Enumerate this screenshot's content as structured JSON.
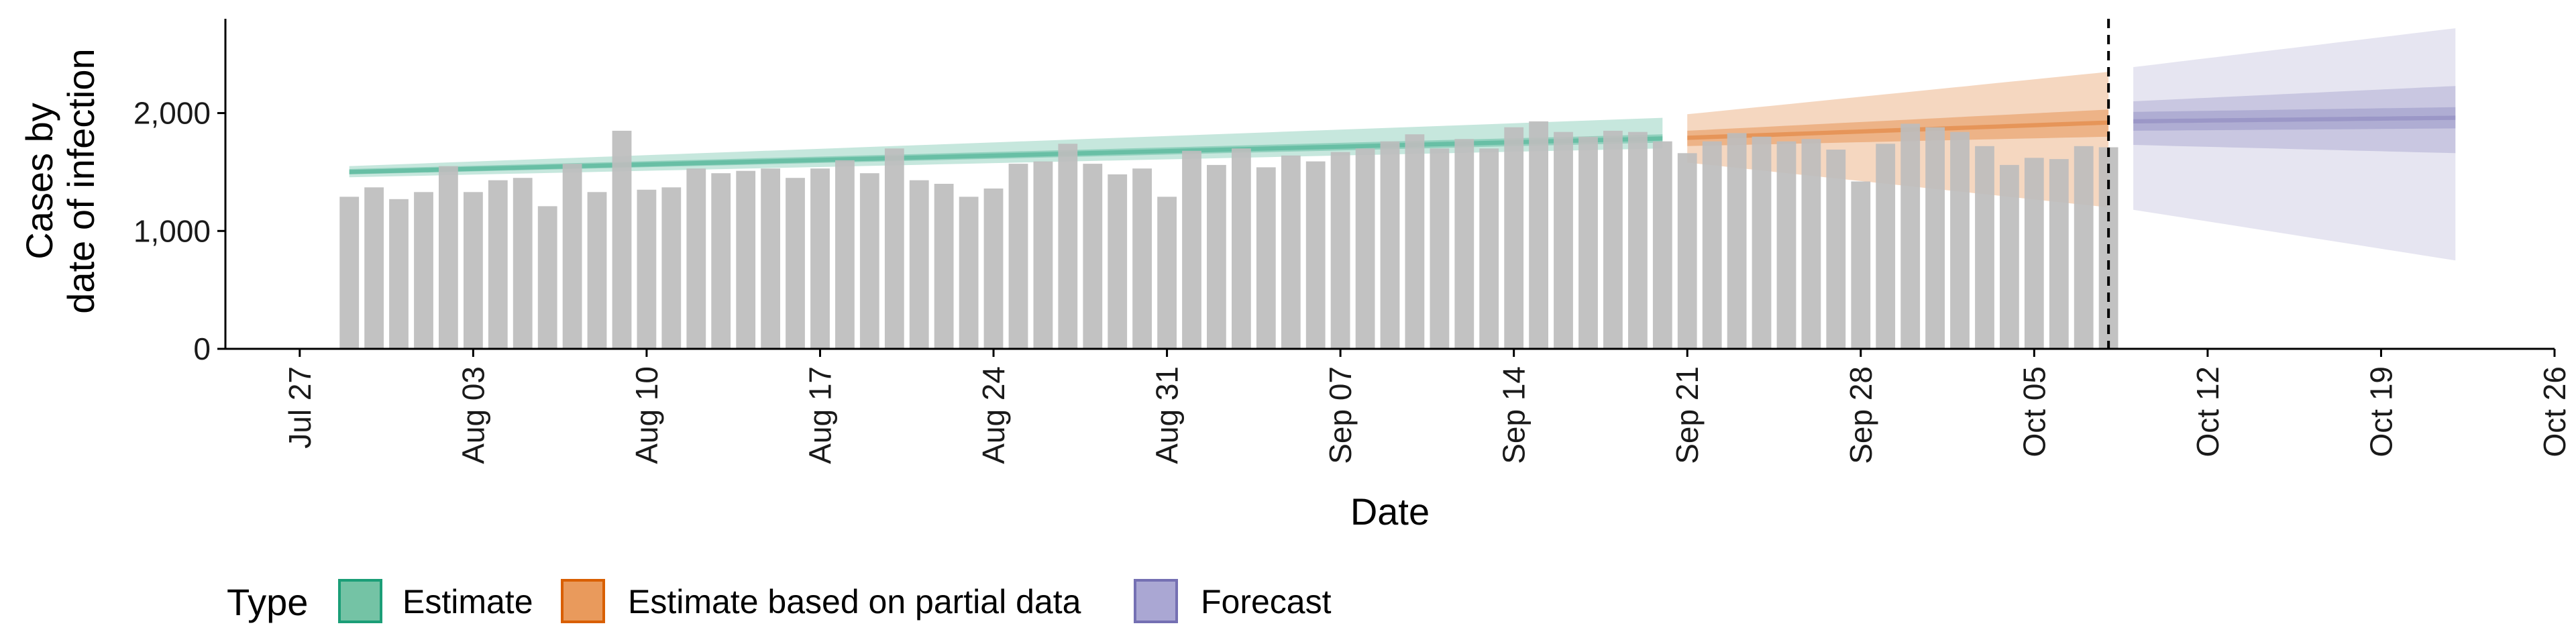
{
  "chart_data": {
    "type": "bar",
    "ylabel_line1": "Cases by",
    "ylabel_line2": "date of infection",
    "xlabel": "Date",
    "ylim": [
      0,
      2800
    ],
    "y_ticks": [
      0,
      1000,
      2000
    ],
    "y_tick_labels": [
      "0",
      "1,000",
      "2,000"
    ],
    "x_range": [
      "2020-07-24",
      "2020-10-26"
    ],
    "x_ticks": [
      "2020-07-27",
      "2020-08-03",
      "2020-08-10",
      "2020-08-17",
      "2020-08-24",
      "2020-08-31",
      "2020-09-07",
      "2020-09-14",
      "2020-09-21",
      "2020-09-28",
      "2020-10-05",
      "2020-10-12",
      "2020-10-19",
      "2020-10-26"
    ],
    "x_tick_labels": [
      "Jul 27",
      "Aug 03",
      "Aug 10",
      "Aug 17",
      "Aug 24",
      "Aug 31",
      "Sep 07",
      "Sep 14",
      "Sep 21",
      "Sep 28",
      "Oct 05",
      "Oct 12",
      "Oct 19",
      "Oct 26"
    ],
    "cut_date": "2020-10-08",
    "bars": {
      "start_date": "2020-07-29",
      "values": [
        1290,
        1370,
        1270,
        1330,
        1550,
        1330,
        1430,
        1450,
        1210,
        1570,
        1330,
        1850,
        1350,
        1370,
        1530,
        1490,
        1510,
        1530,
        1450,
        1530,
        1600,
        1490,
        1700,
        1430,
        1400,
        1290,
        1360,
        1570,
        1590,
        1740,
        1570,
        1480,
        1530,
        1290,
        1680,
        1560,
        1700,
        1540,
        1640,
        1590,
        1670,
        1700,
        1760,
        1820,
        1700,
        1780,
        1700,
        1880,
        1930,
        1840,
        1800,
        1850,
        1840,
        1760,
        1660,
        1760,
        1830,
        1800,
        1760,
        1780,
        1690,
        1420,
        1740,
        1910,
        1880,
        1840,
        1720,
        1560,
        1620,
        1610,
        1720,
        1710
      ]
    },
    "series": [
      {
        "name": "Estimate",
        "color": "#1b9e77",
        "x": [
          "2020-07-29",
          "2020-09-20"
        ],
        "median": [
          1500,
          1785
        ],
        "lower50": [
          1480,
          1750
        ],
        "upper50": [
          1525,
          1820
        ],
        "lower90": [
          1455,
          1700
        ],
        "upper90": [
          1550,
          1960
        ]
      },
      {
        "name": "Estimate based on partial data",
        "color": "#d95f02",
        "x": [
          "2020-09-21",
          "2020-10-08"
        ],
        "median": [
          1790,
          1920
        ],
        "lower50": [
          1720,
          1800
        ],
        "upper50": [
          1850,
          2030
        ],
        "lower90": [
          1580,
          1200
        ],
        "upper90": [
          1990,
          2350
        ]
      },
      {
        "name": "Forecast",
        "color": "#7570b3",
        "x": [
          "2020-10-09",
          "2020-10-22"
        ],
        "median": [
          1930,
          1960
        ],
        "lower50": [
          1850,
          1870
        ],
        "upper50": [
          2010,
          2050
        ],
        "lower90": [
          1730,
          1660
        ],
        "upper90": [
          2100,
          2230
        ],
        "lower_outer": [
          1180,
          750
        ],
        "upper_outer": [
          2390,
          2720
        ]
      }
    ],
    "legend": {
      "title": "Type",
      "position": "bottom",
      "items": [
        {
          "label": "Estimate",
          "fill": "#74c3a5",
          "stroke": "#1b9e77"
        },
        {
          "label": "Estimate based on partial data",
          "fill": "#e99a5c",
          "stroke": "#d95f02"
        },
        {
          "label": "Forecast",
          "fill": "#aaa7d3",
          "stroke": "#7570b3"
        }
      ]
    },
    "bar_color": "#bdbdbd",
    "grid": false
  }
}
